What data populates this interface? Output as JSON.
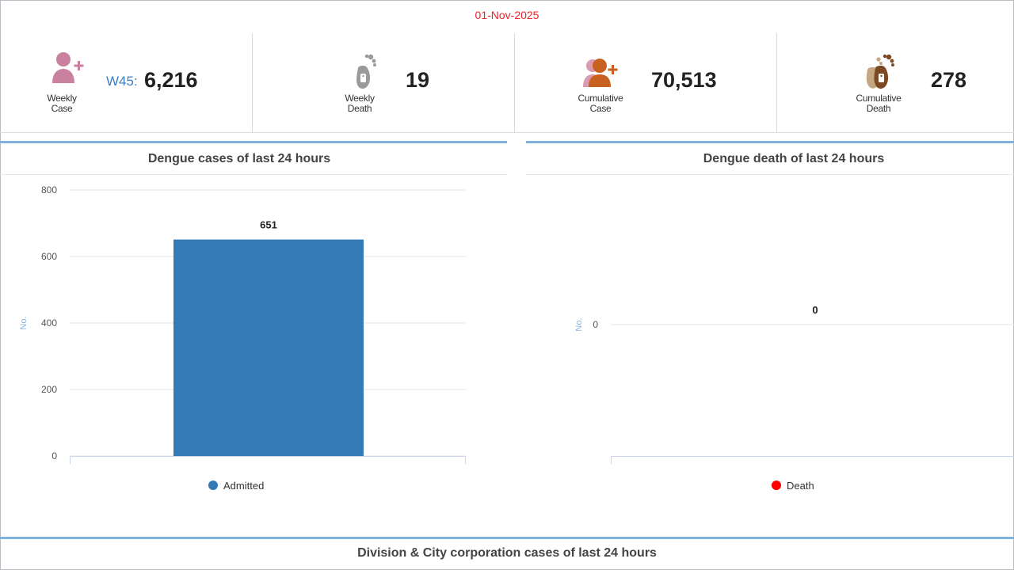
{
  "header": {
    "date": "01-Nov-2025"
  },
  "stats": {
    "weekly_case": {
      "label_line1": "Weekly",
      "label_line2": "Case",
      "week_label": "W45:",
      "value": "6,216",
      "icon": "user-plus-icon"
    },
    "weekly_death": {
      "label_line1": "Weekly",
      "label_line2": "Death",
      "value": "19",
      "icon": "foot-tag-icon"
    },
    "cumulative_case": {
      "label_line1": "Cumulative",
      "label_line2": "Case",
      "value": "70,513",
      "icon": "users-plus-icon"
    },
    "cumulative_death": {
      "label_line1": "Cumulative",
      "label_line2": "Death",
      "value": "278",
      "icon": "feet-tag-icon"
    }
  },
  "colors": {
    "admitted": "#337ab7",
    "death": "#ff0000",
    "accent_line": "#7fb1dc",
    "date": "#e8262a",
    "week": "#3c7ec4"
  },
  "panels": {
    "cases": {
      "title": "Dengue cases of last 24 hours"
    },
    "deaths": {
      "title": "Dengue death of last 24 hours"
    }
  },
  "chart_data": [
    {
      "type": "bar",
      "title": "Dengue cases of last 24 hours",
      "categories": [
        ""
      ],
      "series": [
        {
          "name": "Admitted",
          "values": [
            651
          ],
          "color": "#337ab7"
        }
      ],
      "ylabel": "No.",
      "xlabel": "",
      "ylim": [
        0,
        800
      ],
      "yticks": [
        0,
        200,
        400,
        600,
        800
      ],
      "grid": true,
      "data_labels": true,
      "legend": "bottom-center"
    },
    {
      "type": "bar",
      "title": "Dengue death of last 24 hours",
      "categories": [
        ""
      ],
      "series": [
        {
          "name": "Death",
          "values": [
            0
          ],
          "color": "#ff0000"
        }
      ],
      "ylabel": "No.",
      "xlabel": "",
      "yticks": [
        0
      ],
      "grid": true,
      "data_labels": true,
      "legend": "bottom-center"
    }
  ],
  "bottom": {
    "title": "Division & City corporation cases of last 24 hours"
  }
}
